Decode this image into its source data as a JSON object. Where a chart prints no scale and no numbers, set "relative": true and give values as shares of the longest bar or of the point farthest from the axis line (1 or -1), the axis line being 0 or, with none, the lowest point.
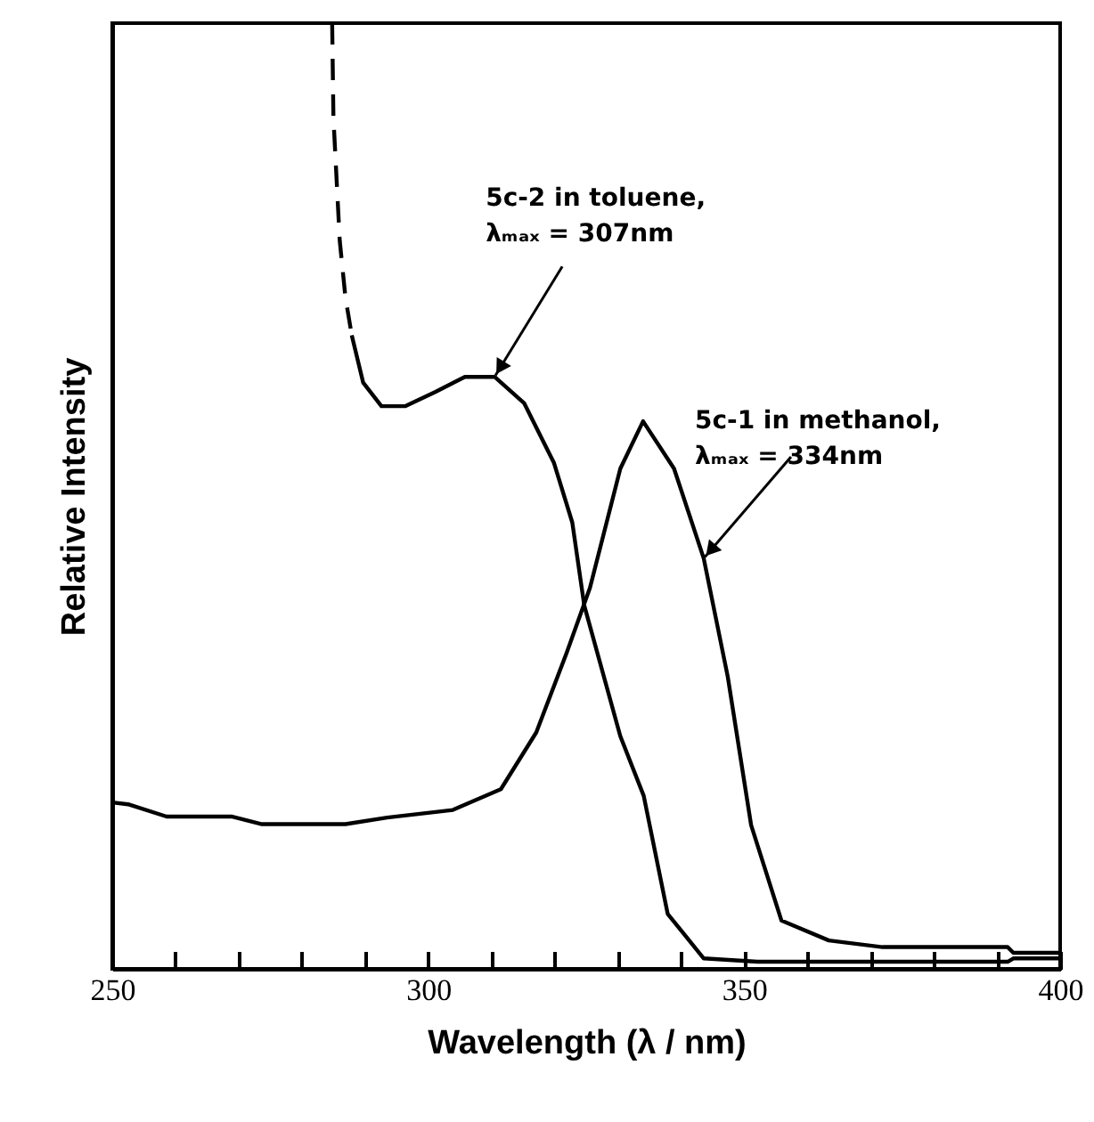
{
  "chart_data": {
    "type": "line",
    "relative": true,
    "xlabel": "Wavelength (λ / nm)",
    "ylabel": "Relative Intensity",
    "xlim": [
      250,
      400
    ],
    "xticks": [
      250,
      {
        "value": 260,
        "label": null
      },
      {
        "value": 270,
        "label": null
      },
      {
        "value": 280,
        "label": null
      },
      {
        "value": 290,
        "label": null
      },
      300,
      {
        "value": 310,
        "label": null
      },
      {
        "value": 320,
        "label": null
      },
      {
        "value": 330,
        "label": null
      },
      {
        "value": 340,
        "label": null
      },
      350,
      {
        "value": 360,
        "label": null
      },
      {
        "value": 370,
        "label": null
      },
      {
        "value": 380,
        "label": null
      },
      {
        "value": 390,
        "label": null
      },
      400
    ],
    "grid": false,
    "marker": "none",
    "series": [
      {
        "color": "#000000",
        "line_style": "dashed",
        "x": [
          284.8,
          285.0,
          286.0,
          286.9,
          287.9
        ],
        "values": [
          1.0,
          0.9,
          0.77,
          0.71,
          0.67
        ]
      },
      {
        "color": "#000000",
        "line_style": "solid",
        "x": [
          287.9,
          289.7,
          292.6,
          296.4,
          301.1,
          305.8,
          310.5,
          315.2,
          319.9,
          322.8,
          324.7,
          330.4,
          334.1,
          337.9,
          343.6,
          352.1,
          391.7,
          392.6,
          400
        ],
        "values": [
          0.67,
          0.62,
          0.595,
          0.595,
          0.61,
          0.626,
          0.626,
          0.598,
          0.535,
          0.472,
          0.384,
          0.246,
          0.183,
          0.058,
          0.011,
          0.0075,
          0.0075,
          0.011,
          0.011
        ]
      },
      {
        "color": "#000000",
        "line_style": "solid",
        "x": [
          250,
          252.5,
          258.6,
          269,
          273.7,
          286.9,
          293.5,
          303.9,
          311.5,
          317.1,
          321.9,
          325.6,
          330.4,
          334,
          338.9,
          343.6,
          347.4,
          351.1,
          355.9,
          363.4,
          371.9,
          391.7,
          392.6,
          400
        ],
        "values": [
          0.176,
          0.174,
          0.161,
          0.161,
          0.153,
          0.153,
          0.16,
          0.168,
          0.19,
          0.25,
          0.334,
          0.403,
          0.529,
          0.579,
          0.529,
          0.434,
          0.309,
          0.152,
          0.051,
          0.03,
          0.023,
          0.023,
          0.017,
          0.017
        ]
      }
    ],
    "annotations": [
      {
        "text": "5c-2 in toluene,\nλₘₐₓ = 307nm",
        "x": 310.5,
        "y": 0.626
      },
      {
        "text": "5c-1 in methanol,\nλₘₐₓ = 334nm",
        "x": 343.6,
        "y": 0.434
      }
    ]
  }
}
